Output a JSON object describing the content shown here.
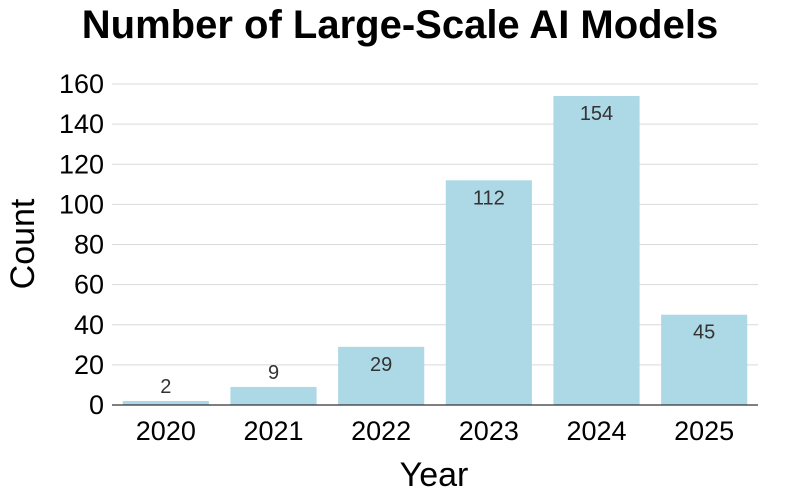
{
  "chart_data": {
    "type": "bar",
    "title": "Number of Large-Scale AI Models",
    "xlabel": "Year",
    "ylabel": "Count",
    "categories": [
      "2020",
      "2021",
      "2022",
      "2023",
      "2024",
      "2025"
    ],
    "values": [
      2,
      9,
      29,
      112,
      154,
      45
    ],
    "ylim": [
      0,
      160
    ],
    "yticks": [
      0,
      20,
      40,
      60,
      80,
      100,
      120,
      140,
      160
    ],
    "grid": true,
    "legend": "none",
    "bar_color": "#ADD8E6"
  }
}
